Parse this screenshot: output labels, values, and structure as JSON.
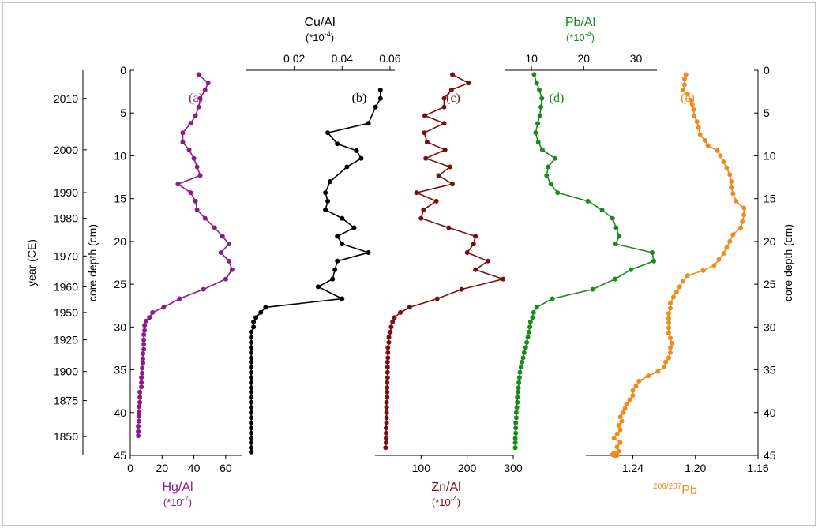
{
  "figure": {
    "left_axis": {
      "label": "year (CE)",
      "ticks": [
        "2010",
        "2000",
        "1990",
        "1980",
        "1970",
        "1960",
        "1950",
        "1925",
        "1900",
        "1875",
        "1850"
      ]
    },
    "depth_axis": {
      "label": "core depth (cm)",
      "ticks": [
        "0",
        "5",
        "10",
        "15",
        "20",
        "25",
        "30",
        "35",
        "40",
        "45"
      ]
    }
  },
  "colors": {
    "hg": "#8b1a8b",
    "cu": "#000000",
    "zn": "#7b0f0f",
    "pb": "#1a8a1a",
    "pbiso": "#f08a1e"
  },
  "chart_data": [
    {
      "type": "line",
      "panel": "(a)",
      "title": "Hg/Al",
      "unit": "(*10-7)",
      "axis_position": "bottom",
      "xlim": [
        0,
        70
      ],
      "ylim": [
        0,
        45
      ],
      "ylabel": "core depth (cm)",
      "tick_labels": [
        "0",
        "20",
        "40",
        "60"
      ],
      "series": [
        {
          "x": [
            43,
            49,
            47,
            44,
            43,
            41,
            38,
            33,
            33,
            37,
            40,
            42,
            44,
            30,
            38,
            41,
            42,
            47,
            53,
            58,
            62,
            57,
            62,
            64,
            60,
            46,
            31,
            21,
            14,
            12,
            10,
            9,
            9,
            8.5,
            8.5,
            8.5,
            8.5,
            8,
            8,
            8,
            7.5,
            7.5,
            7,
            7,
            7,
            6,
            6,
            6,
            5.5,
            5.5,
            5.5,
            5.5,
            5,
            5,
            5
          ],
          "y": [
            0.5,
            1.5,
            2.3,
            3.3,
            4.3,
            5.3,
            6.2,
            7.3,
            8.4,
            9.3,
            10.3,
            11.3,
            12.3,
            13.3,
            14.3,
            15.3,
            16.3,
            17.3,
            18.4,
            19.4,
            20.3,
            21.3,
            22.3,
            23.3,
            24.4,
            25.6,
            26.7,
            27.7,
            28.3,
            28.9,
            29.3,
            29.8,
            30.4,
            30.9,
            31.5,
            32.0,
            32.6,
            33.1,
            33.7,
            34.2,
            34.8,
            35.4,
            35.9,
            36.5,
            37.0,
            37.6,
            38.2,
            38.8,
            39.3,
            39.9,
            40.4,
            41.0,
            41.6,
            42.2,
            42.7
          ]
        }
      ]
    },
    {
      "type": "line",
      "panel": "(b)",
      "title": "Cu/Al",
      "unit": "(*10-4)",
      "axis_position": "top",
      "xlim": [
        0.0,
        0.062
      ],
      "ylim": [
        0,
        45
      ],
      "tick_labels": [
        "0.02",
        "0.04",
        "0.06"
      ],
      "series": [
        {
          "x": [
            0.056,
            0.056,
            0.054,
            0.051,
            0.034,
            0.038,
            0.046,
            0.048,
            0.042,
            0.035,
            0.033,
            0.034,
            0.033,
            0.04,
            0.045,
            0.038,
            0.04,
            0.051,
            0.038,
            0.037,
            0.036,
            0.03,
            0.04,
            0.008,
            0.006,
            0.004,
            0.003,
            0.003,
            0.002,
            0.002,
            0.002,
            0.002,
            0.002,
            0.002,
            0.002,
            0.002,
            0.002,
            0.002,
            0.002,
            0.002,
            0.002,
            0.002,
            0.002,
            0.002,
            0.002,
            0.002,
            0.002,
            0.002,
            0.002,
            0.002,
            0.002,
            0.002,
            0.002
          ],
          "y": [
            2.3,
            3.3,
            4.3,
            6.2,
            7.3,
            8.6,
            9.4,
            10.3,
            11.3,
            13.0,
            14.3,
            15.3,
            16.3,
            17.3,
            18.4,
            19.4,
            20.3,
            21.3,
            22.3,
            23.3,
            24.4,
            25.3,
            26.7,
            27.7,
            28.3,
            28.9,
            29.4,
            30.0,
            30.6,
            31.2,
            31.8,
            32.4,
            33.0,
            33.6,
            34.1,
            34.7,
            35.3,
            35.9,
            36.5,
            37.1,
            37.6,
            38.2,
            38.8,
            39.4,
            40.0,
            40.6,
            41.2,
            41.8,
            42.4,
            43.0,
            43.5,
            44.1,
            44.6
          ]
        }
      ]
    },
    {
      "type": "line",
      "panel": "(c)",
      "title": "Zn/Al",
      "unit": "(*10-4)",
      "axis_position": "bottom",
      "xlim": [
        0,
        300
      ],
      "ylim": [
        0,
        45
      ],
      "tick_labels": [
        "100",
        "200",
        "300"
      ],
      "series": [
        {
          "x": [
            168,
            203,
            166,
            150,
            150,
            108,
            150,
            107,
            113,
            152,
            110,
            163,
            138,
            168,
            90,
            133,
            105,
            100,
            160,
            218,
            214,
            200,
            245,
            218,
            278,
            188,
            135,
            75,
            55,
            42,
            38,
            35,
            33,
            30,
            30,
            28,
            28,
            28,
            27,
            27,
            27,
            27,
            26,
            26,
            26,
            26,
            25,
            25,
            25,
            25,
            25,
            24,
            24,
            24,
            24,
            23
          ],
          "y": [
            0.5,
            1.5,
            2.3,
            3.3,
            4.3,
            5.3,
            6.2,
            7.3,
            8.4,
            9.3,
            10.3,
            11.3,
            12.3,
            13.3,
            14.3,
            15.3,
            16.3,
            17.3,
            18.4,
            19.4,
            20.3,
            21.3,
            22.3,
            23.3,
            24.4,
            25.6,
            26.7,
            27.7,
            28.3,
            28.9,
            29.4,
            30.0,
            30.6,
            31.2,
            31.8,
            32.4,
            33.0,
            33.6,
            34.1,
            34.7,
            35.3,
            35.9,
            36.5,
            37.1,
            37.6,
            38.2,
            38.8,
            39.4,
            40.0,
            40.6,
            41.2,
            41.8,
            42.4,
            43.0,
            43.5,
            44.1
          ]
        }
      ]
    },
    {
      "type": "line",
      "panel": "(d)",
      "title": "Pb/Al",
      "unit": "(*10-4)",
      "axis_position": "top",
      "xlim": [
        5,
        34
      ],
      "ylim": [
        0,
        45
      ],
      "tick_labels": [
        "10",
        "20",
        "30"
      ],
      "series": [
        {
          "x": [
            10.5,
            11.0,
            11.5,
            12.0,
            11.8,
            11.6,
            11.2,
            10.8,
            11.3,
            12.1,
            14.5,
            13.2,
            12.9,
            13.7,
            15.0,
            20.8,
            23.5,
            25.5,
            26.2,
            26.8,
            26.1,
            33.1,
            33.4,
            29.0,
            26.0,
            21.7,
            14.0,
            11.0,
            10.4,
            10.2,
            9.8,
            9.7,
            9.5,
            9.3,
            9.1,
            8.9,
            8.6,
            8.4,
            8.2,
            8.0,
            7.8,
            7.7,
            7.6,
            7.5,
            7.4,
            7.3,
            7.3,
            7.2,
            7.1,
            7.1,
            7.0,
            7.0,
            7.0,
            6.9,
            6.9,
            6.9
          ],
          "y": [
            0.5,
            1.5,
            2.3,
            3.3,
            4.3,
            5.3,
            6.2,
            7.3,
            8.4,
            9.3,
            10.3,
            11.3,
            12.3,
            13.3,
            14.3,
            15.3,
            16.3,
            17.3,
            18.4,
            19.4,
            20.3,
            21.3,
            22.3,
            23.3,
            24.4,
            25.6,
            26.7,
            27.7,
            28.3,
            28.9,
            29.4,
            30.0,
            30.6,
            31.2,
            31.8,
            32.4,
            33.0,
            33.6,
            34.1,
            34.7,
            35.3,
            35.9,
            36.5,
            37.1,
            37.6,
            38.2,
            38.8,
            39.4,
            40.0,
            40.6,
            41.2,
            41.8,
            42.4,
            43.0,
            43.5,
            44.1
          ]
        }
      ]
    },
    {
      "type": "line",
      "panel": "(e)",
      "title": "206/207Pb",
      "axis_position": "bottom",
      "xlim": [
        1.27,
        1.16
      ],
      "ylim": [
        0,
        45
      ],
      "ylabel": "core depth (cm)",
      "tick_labels": [
        "1.24",
        "1.20",
        "1.16"
      ],
      "series": [
        {
          "x": [
            1.206,
            1.207,
            1.207,
            1.208,
            1.205,
            1.203,
            1.202,
            1.201,
            1.201,
            1.199,
            1.198,
            1.197,
            1.194,
            1.192,
            1.186,
            1.184,
            1.182,
            1.18,
            1.178,
            1.177,
            1.177,
            1.176,
            1.174,
            1.169,
            1.169,
            1.17,
            1.171,
            1.176,
            1.178,
            1.18,
            1.182,
            1.185,
            1.188,
            1.195,
            1.205,
            1.208,
            1.21,
            1.212,
            1.214,
            1.216,
            1.216,
            1.217,
            1.217,
            1.217,
            1.217,
            1.217,
            1.216,
            1.215,
            1.216,
            1.216,
            1.217,
            1.219,
            1.22,
            1.224,
            1.23,
            1.236,
            1.238,
            1.24,
            1.24,
            1.242,
            1.244,
            1.245,
            1.246,
            1.248,
            1.247,
            1.249,
            1.248,
            1.25,
            1.252,
            1.248,
            1.25,
            1.249,
            1.252,
            1.253,
            1.251,
            1.25,
            1.251,
            1.252
          ],
          "y": [
            0.5,
            1.0,
            1.7,
            2.3,
            2.8,
            3.5,
            4.0,
            4.6,
            5.3,
            6.0,
            6.7,
            7.5,
            8.2,
            8.8,
            9.4,
            10.0,
            10.7,
            11.4,
            12.2,
            13.0,
            13.7,
            14.4,
            15.3,
            16.1,
            16.9,
            17.7,
            18.4,
            19.2,
            20.0,
            20.7,
            21.4,
            22.1,
            22.8,
            23.4,
            24.0,
            24.6,
            25.3,
            25.9,
            26.5,
            27.2,
            27.8,
            28.4,
            29.0,
            29.5,
            30.1,
            30.7,
            31.3,
            31.9,
            32.4,
            33.0,
            33.6,
            34.1,
            34.7,
            35.2,
            35.7,
            36.3,
            36.9,
            37.4,
            38.0,
            38.5,
            39.0,
            39.5,
            40.0,
            40.5,
            41.0,
            41.5,
            42.0,
            42.5,
            43.0,
            43.5,
            44.0,
            44.5,
            44.7,
            44.9,
            45.0,
            45.0,
            45.0,
            45.0
          ]
        }
      ]
    }
  ],
  "labels": {
    "hg": {
      "title": "Hg/Al",
      "unit": "(*10",
      "exp": "-7",
      "close": ")"
    },
    "cu": {
      "title": "Cu/Al",
      "unit": "(*10",
      "exp": "-4",
      "close": ")"
    },
    "zn": {
      "title": "Zn/Al",
      "unit": "(*10",
      "exp": "-4",
      "close": ")"
    },
    "pb": {
      "title": "Pb/Al",
      "unit": "(*10",
      "exp": "-4",
      "close": ")"
    },
    "pbiso": {
      "sup": "206/207",
      "main": "Pb"
    },
    "panels": [
      "(a)",
      "(b)",
      "(c)",
      "(d)",
      "(e)"
    ]
  }
}
